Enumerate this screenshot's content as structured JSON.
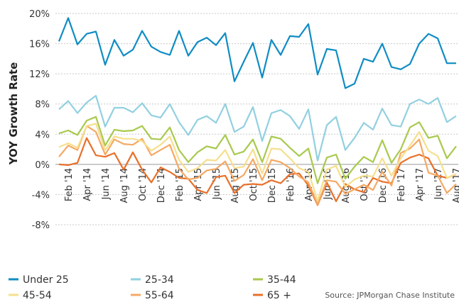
{
  "chart_data": {
    "type": "line",
    "y_label": "YOY Growth Rate",
    "source": "Source:  JPMorgan Chase Institute",
    "categories": [
      null,
      "Feb '14",
      null,
      "Apr '14",
      null,
      "Jun '14",
      null,
      "Aug '14",
      null,
      "Oct '14",
      null,
      "Dec '14",
      null,
      "Feb '15",
      null,
      "Apr '15",
      null,
      "Jun '15",
      null,
      "Aug '15",
      null,
      "Oct '15",
      null,
      "Dec '15",
      null,
      "Feb '16",
      null,
      "Apr '16",
      null,
      "Jun '16",
      null,
      "Aug '16",
      null,
      "Oct '16",
      null,
      "Dec '16",
      null,
      "Feb '17",
      null,
      "Apr '17",
      null,
      "Jun '17",
      null,
      "Aug '17"
    ],
    "ylim": [
      -8,
      20
    ],
    "yticks": [
      {
        "value": 20,
        "label": "20%"
      },
      {
        "value": 16,
        "label": "16%"
      },
      {
        "value": 12,
        "label": "12%"
      },
      {
        "value": 8,
        "label": "8%"
      },
      {
        "value": 4,
        "label": "4%"
      },
      {
        "value": 0,
        "label": "0%"
      },
      {
        "value": -4,
        "label": "-4%"
      },
      {
        "value": -8,
        "label": "-8%"
      }
    ],
    "grid": true,
    "series": [
      {
        "name": "Under 25",
        "color": "#0f8cc4",
        "values": [
          16.3,
          19.4,
          15.9,
          17.3,
          17.6,
          13.2,
          16.5,
          14.4,
          15.2,
          17.7,
          15.6,
          14.9,
          14.5,
          17.7,
          14.4,
          16.2,
          16.8,
          15.8,
          17.4,
          11.0,
          13.6,
          16.1,
          11.5,
          16.5,
          14.5,
          17.0,
          16.9,
          18.6,
          11.9,
          15.3,
          15.1,
          10.1,
          10.7,
          14.0,
          13.6,
          16.0,
          12.9,
          12.6,
          13.3,
          16.0,
          17.3,
          16.7,
          13.4,
          13.4
        ]
      },
      {
        "name": "25-34",
        "color": "#92d0e0",
        "values": [
          7.3,
          8.4,
          6.8,
          8.2,
          9.1,
          5.0,
          7.5,
          7.5,
          6.9,
          8.1,
          6.5,
          6.2,
          8.0,
          5.6,
          3.9,
          5.9,
          6.4,
          5.5,
          8.0,
          4.3,
          5.0,
          7.6,
          3.1,
          6.8,
          7.2,
          6.4,
          4.7,
          7.3,
          0.5,
          5.2,
          6.3,
          1.9,
          3.5,
          5.5,
          4.6,
          7.4,
          5.2,
          5.0,
          8.0,
          8.6,
          8.0,
          8.8,
          5.6,
          6.4
        ]
      },
      {
        "name": "35-44",
        "color": "#a9c94e",
        "values": [
          4.1,
          4.5,
          3.9,
          5.8,
          6.3,
          2.5,
          4.6,
          4.4,
          4.5,
          5.1,
          3.4,
          3.3,
          4.9,
          1.9,
          0.3,
          1.6,
          2.4,
          2.1,
          3.9,
          1.3,
          1.7,
          3.3,
          0.3,
          3.7,
          3.4,
          2.2,
          1.1,
          2.1,
          -2.5,
          0.9,
          1.3,
          -1.9,
          -0.3,
          1.0,
          0.3,
          3.2,
          0.2,
          2.0,
          4.9,
          5.6,
          3.5,
          3.8,
          0.8,
          2.4
        ]
      },
      {
        "name": "45-54",
        "color": "#f6df8e",
        "values": [
          2.3,
          2.8,
          2.2,
          5.1,
          5.4,
          1.9,
          3.7,
          3.4,
          3.4,
          3.1,
          1.8,
          2.6,
          3.7,
          0.6,
          -1.0,
          -0.5,
          0.6,
          0.5,
          1.9,
          -0.5,
          -0.3,
          2.0,
          -1.2,
          2.1,
          2.0,
          0.8,
          -0.5,
          -1.0,
          -4.8,
          -0.7,
          -0.2,
          -3.0,
          -2.0,
          -1.5,
          -1.6,
          0.8,
          -1.5,
          0.8,
          2.5,
          4.3,
          1.8,
          1.1,
          -1.8,
          -1.3
        ]
      },
      {
        "name": "55-64",
        "color": "#f5a963",
        "values": [
          1.0,
          2.5,
          1.9,
          5.1,
          4.3,
          1.3,
          3.3,
          2.7,
          2.6,
          3.4,
          1.2,
          1.9,
          2.6,
          -0.6,
          -2.0,
          -1.8,
          -0.8,
          -0.6,
          0.4,
          -2.2,
          -1.4,
          0.7,
          -2.1,
          0.6,
          0.3,
          -0.5,
          -1.6,
          -2.4,
          -5.3,
          -2.1,
          -2.3,
          -3.9,
          -3.3,
          -2.7,
          -3.4,
          -1.0,
          -2.8,
          1.5,
          2.1,
          3.3,
          -1.1,
          -1.5,
          -3.8,
          -2.6
        ]
      },
      {
        "name": "65 +",
        "color": "#e8702a",
        "values": [
          0.0,
          -0.1,
          0.2,
          3.5,
          1.2,
          1.0,
          1.5,
          -0.7,
          1.6,
          -0.7,
          -2.4,
          -0.4,
          -1.0,
          -1.8,
          -1.9,
          -3.4,
          -3.8,
          -1.7,
          -1.5,
          -3.8,
          -2.7,
          -2.6,
          -2.7,
          -2.1,
          -2.5,
          -1.3,
          -1.2,
          -2.8,
          -5.4,
          -2.4,
          -4.9,
          -2.6,
          -3.3,
          -3.7,
          -1.8,
          -2.3,
          -2.5,
          0.2,
          0.9,
          1.3,
          0.8,
          -1.5,
          -1.8,
          -1.3
        ]
      }
    ]
  }
}
